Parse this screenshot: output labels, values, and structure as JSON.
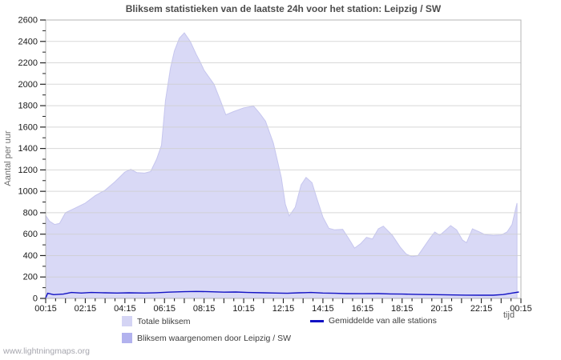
{
  "title": "Bliksem statistieken van de laatste 24h voor het station: Leipzig / SW",
  "watermark": "www.lightningmaps.org",
  "axes": {
    "y_label": "Aantal per uur",
    "x_label": "tijd"
  },
  "colors": {
    "total_area_fill": "#d9d9f6",
    "total_area_edge": "#c6c6ee",
    "station_area_fill": "#b2b2ee",
    "average_line": "#1212c4",
    "grid": "#cfcfcf",
    "plot_border": "#b5b5b5",
    "tick": "#222222",
    "tick_label": "#1a1a1a"
  },
  "legend": [
    {
      "label": "Totale bliksem",
      "type": "area",
      "color": "#d4d4f4"
    },
    {
      "label": "Gemiddelde van alle stations",
      "type": "line",
      "color": "#1212c4"
    },
    {
      "label": "Bliksem waargenomen door Leipzig / SW",
      "type": "area",
      "color": "#b2b2ee"
    }
  ],
  "chart_data": {
    "type": "area",
    "title": "Bliksem statistieken van de laatste 24h voor het station: Leipzig / SW",
    "xlabel": "tijd",
    "ylabel": "Aantal per uur",
    "xlim": [
      0,
      24
    ],
    "ylim": [
      0,
      2600
    ],
    "x_unit": "hours after 00:15",
    "x_tick_step_hours": 2,
    "x_tick_labels": [
      "00:15",
      "02:15",
      "04:15",
      "06:15",
      "08:15",
      "10:15",
      "12:15",
      "14:15",
      "16:15",
      "18:15",
      "20:15",
      "22:15",
      "00:15"
    ],
    "y_ticks": [
      0,
      200,
      400,
      600,
      800,
      1000,
      1200,
      1400,
      1600,
      1800,
      2000,
      2200,
      2400,
      2600
    ],
    "grid": "horizontal",
    "legend_position": "bottom",
    "series": [
      {
        "name": "Totale bliksem",
        "type": "area",
        "color": "#d9d9f6",
        "x": [
          0,
          0.2,
          0.45,
          0.7,
          1,
          1.5,
          2,
          2.5,
          3,
          3.5,
          4,
          4.3,
          4.6,
          5,
          5.3,
          5.6,
          5.85,
          6.05,
          6.3,
          6.5,
          6.75,
          7,
          7.3,
          7.6,
          7.8,
          8,
          8.5,
          8.8,
          9.1,
          9.5,
          10,
          10.5,
          10.8,
          11.1,
          11.5,
          11.9,
          12.1,
          12.3,
          12.6,
          12.9,
          13.15,
          13.45,
          13.7,
          14,
          14.3,
          14.6,
          15,
          15.3,
          15.6,
          15.9,
          16.2,
          16.5,
          16.8,
          17.05,
          17.5,
          17.9,
          18.2,
          18.5,
          18.8,
          19.1,
          19.4,
          19.65,
          19.9,
          20.15,
          20.45,
          20.75,
          21.05,
          21.25,
          21.55,
          21.85,
          22.2,
          22.6,
          23,
          23.3,
          23.55,
          23.8
        ],
        "values": [
          775,
          720,
          690,
          700,
          800,
          845,
          890,
          960,
          1010,
          1090,
          1180,
          1205,
          1175,
          1170,
          1185,
          1300,
          1430,
          1850,
          2150,
          2310,
          2430,
          2480,
          2400,
          2280,
          2210,
          2130,
          2000,
          1860,
          1715,
          1745,
          1780,
          1795,
          1730,
          1655,
          1450,
          1130,
          880,
          770,
          850,
          1060,
          1130,
          1080,
          930,
          760,
          655,
          640,
          645,
          560,
          470,
          510,
          570,
          555,
          650,
          675,
          590,
          480,
          415,
          390,
          400,
          480,
          560,
          620,
          590,
          630,
          680,
          640,
          545,
          520,
          650,
          625,
          595,
          588,
          592,
          620,
          690,
          890
        ]
      },
      {
        "name": "Bliksem waargenomen door Leipzig / SW",
        "type": "area",
        "color": "#b2b2ee",
        "x": [
          0,
          23.8
        ],
        "values": [
          0,
          0
        ]
      },
      {
        "name": "Gemiddelde van alle stations",
        "type": "line",
        "color": "#1212c4",
        "x": [
          0,
          0.1,
          0.4,
          0.9,
          1.3,
          1.8,
          2.3,
          3,
          3.6,
          4.2,
          5,
          5.6,
          6.2,
          7,
          7.6,
          8.2,
          9,
          9.6,
          10.2,
          11,
          11.6,
          12.2,
          12.8,
          13.4,
          14,
          14.6,
          15.2,
          16,
          16.8,
          17.4,
          18,
          18.6,
          19.2,
          20,
          20.6,
          21.2,
          22,
          22.6,
          23.1,
          23.5,
          23.9
        ],
        "values": [
          5,
          48,
          35,
          40,
          55,
          50,
          55,
          52,
          50,
          52,
          50,
          53,
          58,
          63,
          65,
          63,
          58,
          60,
          55,
          52,
          50,
          48,
          52,
          55,
          50,
          48,
          45,
          44,
          45,
          42,
          40,
          38,
          36,
          34,
          32,
          31,
          30,
          30,
          36,
          48,
          60
        ]
      }
    ]
  }
}
